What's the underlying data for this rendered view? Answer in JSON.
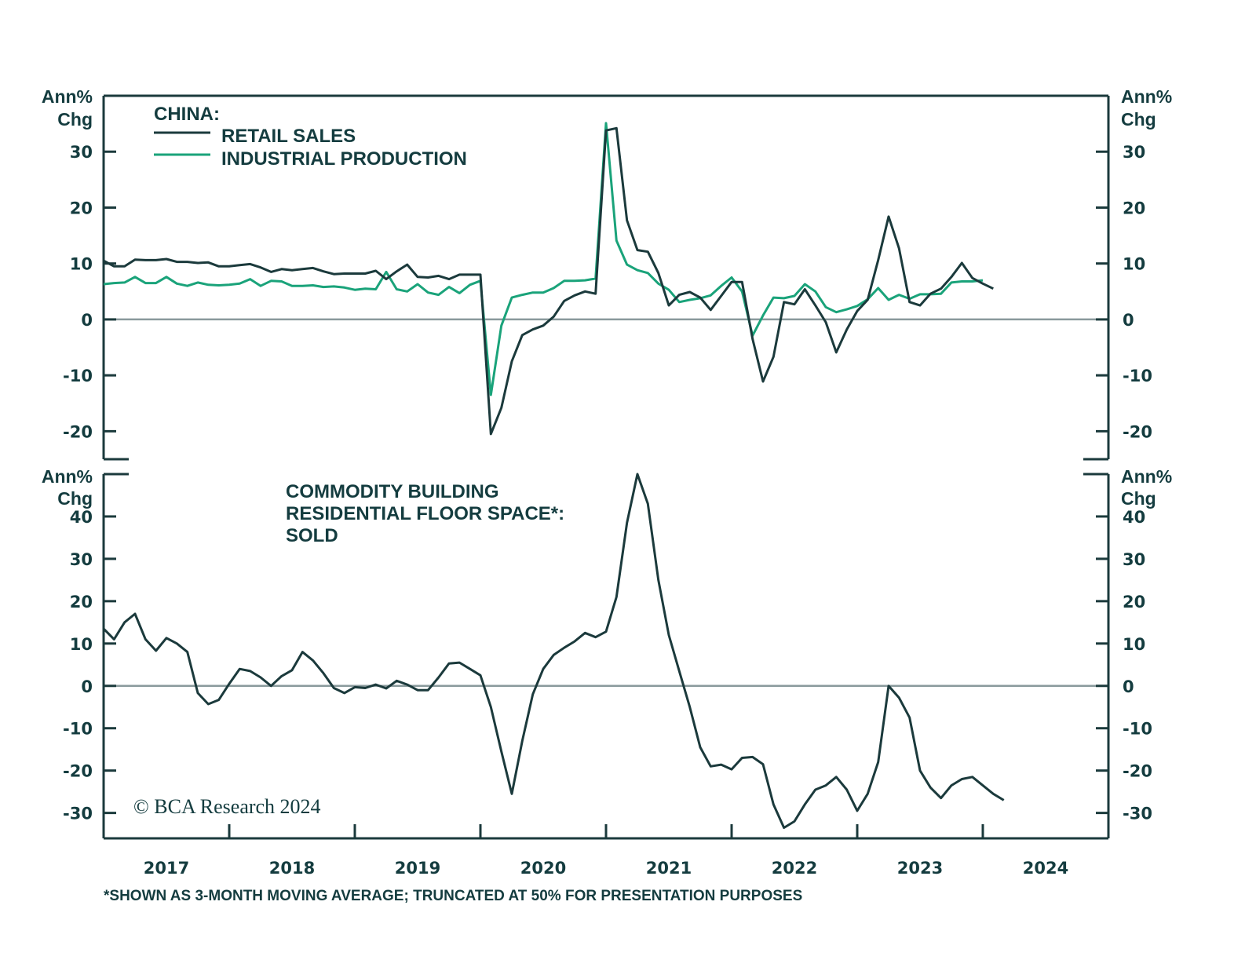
{
  "chart_data": [
    {
      "type": "line",
      "panel": "top",
      "title": "CHINA:",
      "ylabel_left": [
        "Ann%",
        "Chg"
      ],
      "ylabel_right": [
        "Ann%",
        "Chg"
      ],
      "ylim": [
        -25,
        40
      ],
      "yticks": [
        -20,
        -10,
        0,
        10,
        20,
        30
      ],
      "x_start": "2017-01",
      "frequency": "monthly",
      "legend_placement": "top-left",
      "series": [
        {
          "name": "RETAIL SALES",
          "color": "#1b3a3c",
          "values": [
            10.5,
            9.5,
            9.5,
            10.7,
            10.6,
            10.6,
            10.8,
            10.3,
            10.3,
            10.1,
            10.2,
            9.5,
            9.5,
            9.7,
            9.9,
            9.3,
            8.5,
            9.0,
            8.8,
            9.0,
            9.2,
            8.6,
            8.1,
            8.2,
            8.2,
            8.2,
            8.7,
            7.2,
            8.6,
            9.8,
            7.6,
            7.5,
            7.8,
            7.2,
            8.0,
            8.0,
            8.0,
            -20.5,
            -15.8,
            -7.5,
            -2.8,
            -1.8,
            -1.1,
            0.5,
            3.3,
            4.3,
            5.0,
            4.6,
            33.8,
            34.2,
            17.7,
            12.4,
            12.1,
            8.3,
            2.5,
            4.4,
            4.9,
            3.9,
            1.7,
            4.2,
            6.7,
            6.7,
            -3.5,
            -11.1,
            -6.7,
            3.1,
            2.7,
            5.4,
            2.5,
            -0.5,
            -5.9,
            -1.8,
            1.5,
            3.5,
            10.6,
            18.4,
            12.7,
            3.1,
            2.5,
            4.6,
            5.5,
            7.6,
            10.1,
            7.4,
            6.4,
            5.5
          ]
        },
        {
          "name": "INDUSTRIAL PRODUCTION",
          "color": "#1aa37a",
          "values": [
            6.3,
            6.5,
            6.6,
            7.6,
            6.5,
            6.5,
            7.6,
            6.4,
            6.0,
            6.6,
            6.2,
            6.1,
            6.2,
            6.4,
            7.2,
            6.0,
            6.9,
            6.8,
            6.0,
            6.0,
            6.1,
            5.8,
            5.9,
            5.7,
            5.3,
            5.5,
            5.4,
            8.5,
            5.4,
            5.0,
            6.3,
            4.8,
            4.4,
            5.8,
            4.7,
            6.2,
            6.9,
            -13.5,
            -1.1,
            3.9,
            4.4,
            4.8,
            4.8,
            5.6,
            6.9,
            6.9,
            7.0,
            7.3,
            35.1,
            14.1,
            9.8,
            8.8,
            8.3,
            6.4,
            5.3,
            3.1,
            3.5,
            3.8,
            4.3,
            6.0,
            7.5,
            5.0,
            -2.9,
            0.7,
            3.9,
            3.8,
            4.2,
            6.3,
            5.0,
            2.2,
            1.3,
            1.8,
            2.4,
            3.6,
            5.6,
            3.5,
            4.4,
            3.7,
            4.5,
            4.5,
            4.6,
            6.6,
            6.8,
            6.8,
            7.0
          ]
        }
      ]
    },
    {
      "type": "line",
      "panel": "bottom",
      "title": "COMMODITY BUILDING RESIDENTIAL FLOOR SPACE*: SOLD",
      "ylabel_left": [
        "Ann%",
        "Chg"
      ],
      "ylabel_right": [
        "Ann%",
        "Chg"
      ],
      "ylim": [
        -36,
        50
      ],
      "yticks": [
        -30,
        -20,
        -10,
        0,
        10,
        20,
        30,
        40
      ],
      "x_start": "2017-01",
      "frequency": "monthly",
      "series": [
        {
          "name": "COMMODITY BUILDING RESIDENTIAL FLOOR SPACE SOLD",
          "color": "#1b3a3c",
          "values": [
            13.5,
            11.0,
            15.0,
            17.0,
            11.0,
            8.3,
            11.3,
            10.0,
            8.0,
            -1.7,
            -4.3,
            -3.3,
            0.5,
            4.0,
            3.5,
            2.0,
            0.0,
            2.3,
            3.7,
            8.0,
            6.0,
            3.0,
            -0.5,
            -1.7,
            -0.3,
            -0.5,
            0.3,
            -0.6,
            1.2,
            0.3,
            -1.0,
            -1.0,
            2.0,
            5.3,
            5.5,
            4.0,
            2.5,
            -5.0,
            -15.5,
            -25.5,
            -13.0,
            -2.0,
            4.0,
            7.3,
            9.0,
            10.5,
            12.5,
            11.5,
            12.8,
            21.0,
            38.5,
            50.0,
            43.0,
            25.0,
            12.0,
            3.5,
            -5.0,
            -14.5,
            -19.0,
            -18.6,
            -19.7,
            -17.0,
            -16.8,
            -18.5,
            -28.0,
            -33.5,
            -32.0,
            -28.0,
            -24.5,
            -23.5,
            -21.5,
            -24.5,
            -29.5,
            -25.5,
            -18.0,
            0.0,
            -2.8,
            -7.5,
            -20.0,
            -24.0,
            -26.5,
            -23.5,
            -22.0,
            -21.5,
            -23.5,
            -25.5,
            -27.0
          ]
        }
      ]
    }
  ],
  "legend": {
    "heading": "CHINA:",
    "items": [
      "RETAIL SALES",
      "INDUSTRIAL PRODUCTION"
    ]
  },
  "bottom_label": [
    "COMMODITY BUILDING",
    "RESIDENTIAL FLOOR SPACE*:",
    "SOLD"
  ],
  "axis_unit": [
    "Ann%",
    "Chg"
  ],
  "x_tick_labels": [
    "2017",
    "2018",
    "2019",
    "2020",
    "2021",
    "2022",
    "2023",
    "2024"
  ],
  "top_y_tick_labels": [
    "30",
    "20",
    "10",
    "0",
    "-10",
    "-20"
  ],
  "bottom_y_tick_labels": [
    "40",
    "30",
    "20",
    "10",
    "0",
    "-10",
    "-20",
    "-30"
  ],
  "copyright": "© BCA Research 2024",
  "footnote": "*SHOWN AS 3-MONTH MOVING AVERAGE; TRUNCATED AT 50% FOR PRESENTATION PURPOSES",
  "colors": {
    "dark": "#1b3a3c",
    "green": "#1aa37a",
    "zero_line": "#8a9a9c",
    "axis": "#1b3a3c"
  }
}
